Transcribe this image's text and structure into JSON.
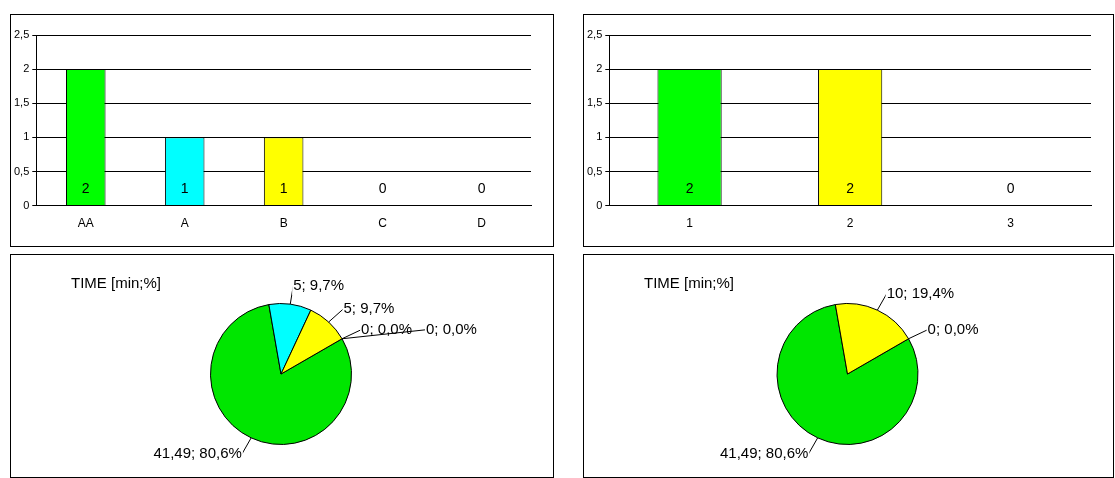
{
  "chart_data": [
    {
      "type": "bar",
      "categories": [
        "AA",
        "A",
        "B",
        "C",
        "D"
      ],
      "values": [
        2,
        1,
        1,
        0,
        0
      ],
      "colors": [
        "#00ff00",
        "#00ffff",
        "#ffff00",
        null,
        null
      ],
      "ylim": [
        0,
        2.5
      ],
      "yticks": [
        0,
        {
          "value": 0.5,
          "label": "0,5"
        },
        1,
        {
          "value": 1.5,
          "label": "1,5"
        },
        2,
        {
          "value": 2.5,
          "label": "2,5"
        }
      ],
      "grid": "y",
      "data_labels": true
    },
    {
      "type": "bar",
      "categories": [
        "1",
        "2",
        "3"
      ],
      "values": [
        2,
        2,
        0
      ],
      "colors": [
        "#00ff00",
        "#ffff00",
        null
      ],
      "ylim": [
        0,
        2.5
      ],
      "yticks": [
        0,
        {
          "value": 0.5,
          "label": "0,5"
        },
        1,
        {
          "value": 1.5,
          "label": "1,5"
        },
        2,
        {
          "value": 2.5,
          "label": "2,5"
        }
      ],
      "grid": "y",
      "data_labels": true
    },
    {
      "type": "pie",
      "title": "TIME [min;%]",
      "categories": [
        null,
        null,
        null,
        null,
        null
      ],
      "values": [
        41.49,
        5,
        5,
        0,
        0
      ],
      "colors": [
        "#00e600",
        "#00ffff",
        "#ffff00",
        null,
        null
      ],
      "value_labels": [
        "41,49; 80,6%",
        "5; 9,7%",
        "5; 9,7%",
        "0; 0,0%",
        "0; 0,0%"
      ]
    },
    {
      "type": "pie",
      "title": "TIME [min;%]",
      "categories": [
        null,
        null,
        null
      ],
      "values": [
        41.49,
        10,
        0
      ],
      "colors": [
        "#00e600",
        "#ffff00",
        null
      ],
      "value_labels": [
        "41,49; 80,6%",
        "10; 19,4%",
        "0; 0,0%"
      ]
    }
  ]
}
